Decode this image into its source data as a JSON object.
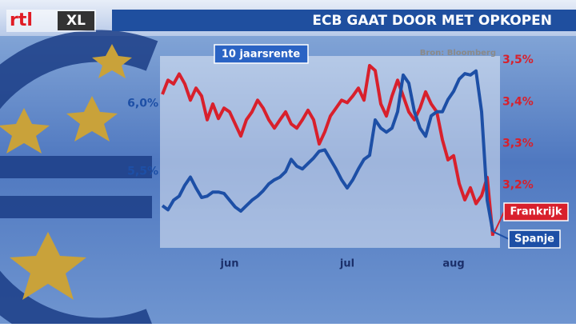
{
  "logo": {
    "part1": "rtl",
    "part2": "XL"
  },
  "chart_data": {
    "type": "line",
    "title": "ECB GAAT DOOR MET OPKOPEN",
    "subtitle": "10 jaarsrente",
    "source": "Bron: Bloomberg",
    "categories": [
      null,
      null,
      null,
      null,
      null,
      null,
      null,
      null,
      null,
      null,
      null,
      null,
      "jun",
      null,
      null,
      null,
      null,
      null,
      null,
      null,
      null,
      null,
      null,
      null,
      null,
      null,
      null,
      null,
      null,
      null,
      null,
      null,
      null,
      "jul",
      null,
      null,
      null,
      null,
      null,
      null,
      null,
      null,
      null,
      null,
      null,
      null,
      null,
      null,
      null,
      null,
      null,
      null,
      "aug",
      null,
      null,
      null,
      null,
      null,
      null,
      null
    ],
    "ylim": [
      4.94,
      6.35
    ],
    "yticks": [
      {
        "value": 5.5,
        "label": "5,5%"
      },
      {
        "value": 6.0,
        "label": "6,0%"
      }
    ],
    "y2lim": [
      3.05,
      3.51
    ],
    "y2ticks": [
      {
        "value": 3.2,
        "label": "3,2%"
      },
      {
        "value": 3.3,
        "label": "3,3%"
      },
      {
        "value": 3.4,
        "label": "3,4%"
      },
      {
        "value": 3.5,
        "label": "3,5%"
      }
    ],
    "series": [
      {
        "name": "Frankrijk",
        "color": "#d8202c",
        "axis": "y2",
        "values": [
          3.418,
          3.452,
          3.443,
          3.467,
          3.443,
          3.404,
          3.433,
          3.414,
          3.357,
          3.395,
          3.36,
          3.385,
          3.376,
          3.347,
          3.318,
          3.357,
          3.376,
          3.404,
          3.385,
          3.357,
          3.337,
          3.357,
          3.376,
          3.347,
          3.337,
          3.357,
          3.38,
          3.357,
          3.299,
          3.328,
          3.366,
          3.385,
          3.404,
          3.398,
          3.414,
          3.433,
          3.404,
          3.487,
          3.475,
          3.395,
          3.366,
          3.414,
          3.452,
          3.414,
          3.376,
          3.357,
          3.385,
          3.424,
          3.395,
          3.376,
          3.309,
          3.261,
          3.271,
          3.204,
          3.165,
          3.194,
          3.156,
          3.175,
          3.219,
          3.079
        ]
      },
      {
        "name": "Spanje",
        "color": "#1d4fa6",
        "axis": "y",
        "values": [
          5.25,
          5.22,
          5.29,
          5.32,
          5.4,
          5.46,
          5.38,
          5.31,
          5.32,
          5.35,
          5.35,
          5.34,
          5.29,
          5.24,
          5.21,
          5.25,
          5.29,
          5.32,
          5.36,
          5.41,
          5.44,
          5.46,
          5.5,
          5.59,
          5.54,
          5.52,
          5.56,
          5.6,
          5.65,
          5.66,
          5.59,
          5.52,
          5.44,
          5.38,
          5.44,
          5.52,
          5.59,
          5.62,
          5.88,
          5.82,
          5.79,
          5.82,
          5.94,
          6.21,
          6.15,
          5.94,
          5.82,
          5.76,
          5.91,
          5.94,
          5.94,
          6.03,
          6.09,
          6.18,
          6.22,
          6.21,
          6.24,
          5.94,
          5.29,
          5.06
        ]
      }
    ]
  }
}
